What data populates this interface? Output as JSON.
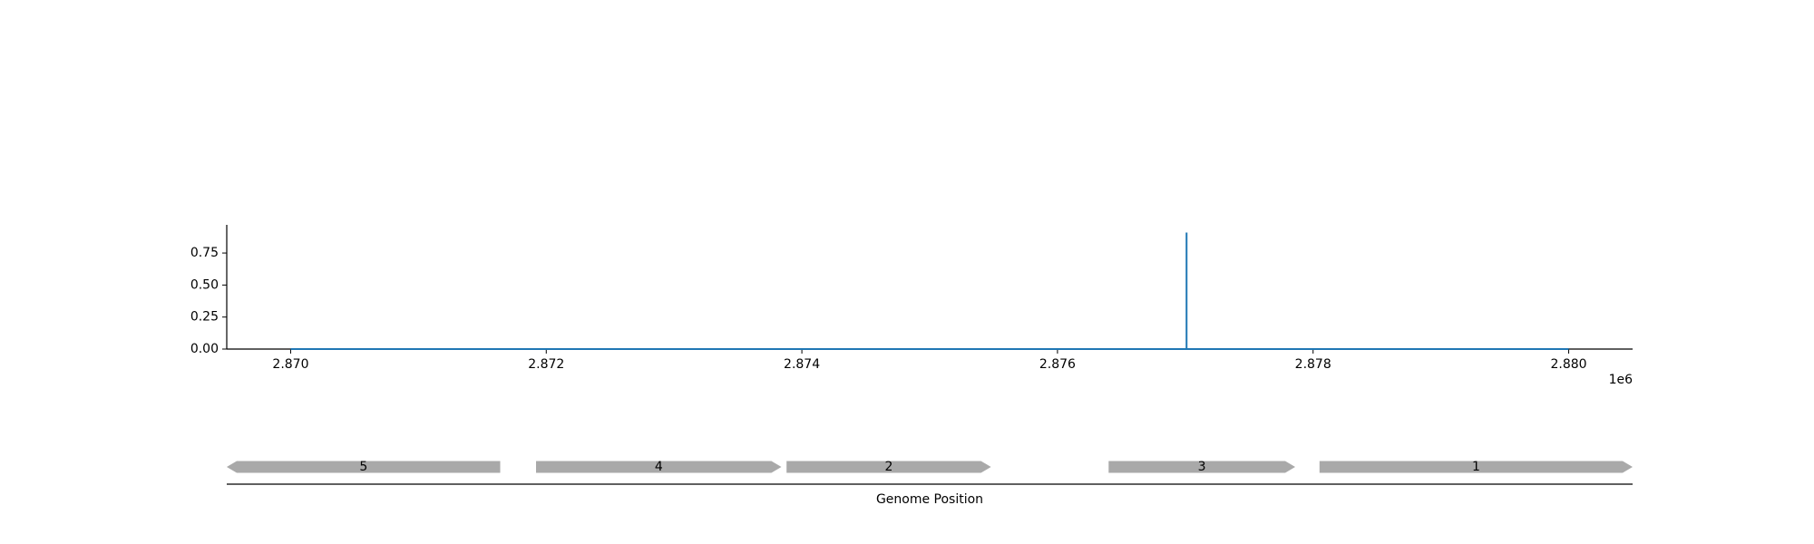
{
  "chart_data": [
    {
      "type": "line",
      "title": "",
      "xlabel": "",
      "ylabel": "",
      "x_offset_label": "1e6",
      "xlim": [
        2869500,
        2880500
      ],
      "ylim": [
        0,
        0.97
      ],
      "xticks": [
        2870000,
        2872000,
        2874000,
        2876000,
        2878000,
        2880000
      ],
      "xtick_labels": [
        "2.870",
        "2.872",
        "2.874",
        "2.876",
        "2.878",
        "2.880"
      ],
      "yticks": [
        0.0,
        0.25,
        0.5,
        0.75
      ],
      "ytick_labels": [
        "0.00",
        "0.25",
        "0.50",
        "0.75"
      ],
      "grid": false,
      "color": "#1f77b4",
      "series": [
        {
          "x": [
            2870000,
            2877010,
            2877010,
            2877010,
            2877020,
            2880000
          ],
          "y": [
            0,
            0,
            0.91,
            0,
            0,
            0
          ]
        }
      ]
    },
    {
      "type": "gene-track",
      "xlabel": "Genome Position",
      "xlim": [
        2869500,
        2880500
      ],
      "color": "#a9a9a9",
      "genes": [
        {
          "label": "5",
          "start": 2869500,
          "end": 2871640,
          "strand": "-"
        },
        {
          "label": "4",
          "start": 2871920,
          "end": 2873840,
          "strand": "+"
        },
        {
          "label": "2",
          "start": 2873880,
          "end": 2875480,
          "strand": "+"
        },
        {
          "label": "3",
          "start": 2876400,
          "end": 2877860,
          "strand": "+"
        },
        {
          "label": "1",
          "start": 2878050,
          "end": 2880500,
          "strand": "+"
        }
      ]
    }
  ]
}
